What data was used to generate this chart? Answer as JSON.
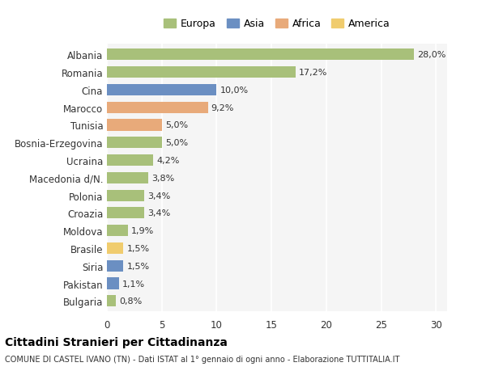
{
  "countries": [
    "Albania",
    "Romania",
    "Cina",
    "Marocco",
    "Tunisia",
    "Bosnia-Erzegovina",
    "Ucraina",
    "Macedonia d/N.",
    "Polonia",
    "Croazia",
    "Moldova",
    "Brasile",
    "Siria",
    "Pakistan",
    "Bulgaria"
  ],
  "values": [
    28.0,
    17.2,
    10.0,
    9.2,
    5.0,
    5.0,
    4.2,
    3.8,
    3.4,
    3.4,
    1.9,
    1.5,
    1.5,
    1.1,
    0.8
  ],
  "labels": [
    "28,0%",
    "17,2%",
    "10,0%",
    "9,2%",
    "5,0%",
    "5,0%",
    "4,2%",
    "3,8%",
    "3,4%",
    "3,4%",
    "1,9%",
    "1,5%",
    "1,5%",
    "1,1%",
    "0,8%"
  ],
  "colors": [
    "#a8c07a",
    "#a8c07a",
    "#6b8fc2",
    "#e8aa7a",
    "#e8aa7a",
    "#a8c07a",
    "#a8c07a",
    "#a8c07a",
    "#a8c07a",
    "#a8c07a",
    "#a8c07a",
    "#f0cc6e",
    "#6b8fc2",
    "#6b8fc2",
    "#a8c07a"
  ],
  "legend_labels": [
    "Europa",
    "Asia",
    "Africa",
    "America"
  ],
  "legend_colors": [
    "#a8c07a",
    "#6b8fc2",
    "#e8aa7a",
    "#f0cc6e"
  ],
  "title": "Cittadini Stranieri per Cittadinanza",
  "subtitle": "COMUNE DI CASTEL IVANO (TN) - Dati ISTAT al 1° gennaio di ogni anno - Elaborazione TUTTITALIA.IT",
  "xlim": [
    0,
    31
  ],
  "xticks": [
    0,
    5,
    10,
    15,
    20,
    25,
    30
  ],
  "background_color": "#ffffff",
  "plot_bg_color": "#f5f5f5",
  "grid_color": "#ffffff",
  "bar_height": 0.65
}
